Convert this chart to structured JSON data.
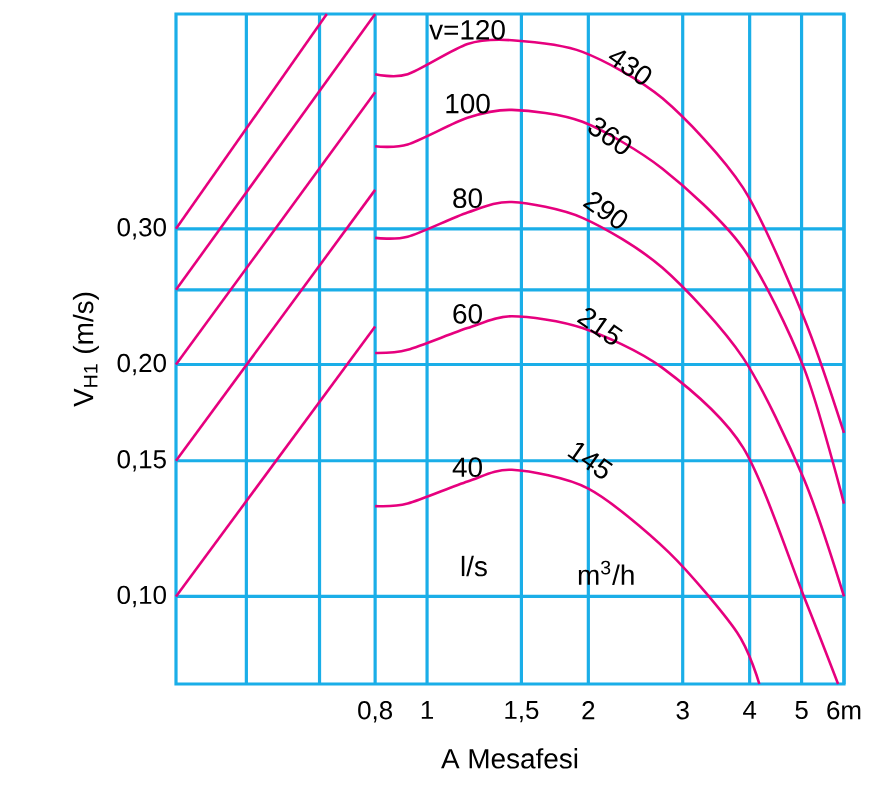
{
  "chart_data": {
    "type": "line",
    "xlabel": "A Mesafesi",
    "ylabel": "V$_{H1}$ (m/s)",
    "log": "xy",
    "grid": true,
    "marker": "none",
    "line_style": "solid",
    "xlim": [
      0.34,
      6
    ],
    "ylim": [
      0.077,
      0.57
    ],
    "xticks": [
      {
        "value": 0.46,
        "label": null
      },
      {
        "value": 0.63,
        "label": null
      },
      {
        "value": 0.8,
        "label": "0,8"
      },
      {
        "value": 1,
        "label": "1"
      },
      {
        "value": 1.5,
        "label": "1,5"
      },
      {
        "value": 2,
        "label": "2"
      },
      {
        "value": 3,
        "label": "3"
      },
      {
        "value": 4,
        "label": "4"
      },
      {
        "value": 5,
        "label": "5"
      },
      {
        "value": 6,
        "label": "6m"
      }
    ],
    "yticks": [
      {
        "value": 0.1,
        "label": "0,10"
      },
      {
        "value": 0.15,
        "label": "0,15"
      },
      {
        "value": 0.2,
        "label": "0,20"
      },
      {
        "value": 0.25,
        "label": null
      },
      {
        "value": 0.3,
        "label": "0,30"
      }
    ],
    "series": [
      {
        "name": "v=120",
        "color": "#e6007e",
        "x": [
          0.8,
          0.92,
          1.19,
          1.44,
          1.95,
          2.75,
          3.89,
          5.05,
          6
        ],
        "values": [
          0.476,
          0.476,
          0.521,
          0.527,
          0.509,
          0.443,
          0.339,
          0.23,
          0.163
        ]
      },
      {
        "name": "100",
        "color": "#e6007e",
        "x": [
          0.8,
          0.92,
          1.19,
          1.44,
          1.95,
          2.75,
          3.89,
          5.05,
          6
        ],
        "values": [
          0.384,
          0.386,
          0.418,
          0.428,
          0.413,
          0.359,
          0.283,
          0.198,
          0.132
        ]
      },
      {
        "name": "80",
        "color": "#e6007e",
        "x": [
          0.8,
          0.92,
          1.19,
          1.44,
          1.95,
          2.75,
          3.89,
          5.05,
          6
        ],
        "values": [
          0.292,
          0.293,
          0.315,
          0.325,
          0.31,
          0.267,
          0.204,
          0.142,
          0.1
        ]
      },
      {
        "name": "60",
        "color": "#e6007e",
        "x": [
          0.8,
          0.92,
          1.19,
          1.44,
          1.95,
          2.75,
          3.89,
          5.05,
          5.85
        ],
        "values": [
          0.207,
          0.209,
          0.223,
          0.231,
          0.223,
          0.198,
          0.156,
          0.1,
          0.077
        ]
      },
      {
        "name": "40",
        "color": "#e6007e",
        "x": [
          0.8,
          0.92,
          1.19,
          1.44,
          2.0,
          2.83,
          3.79,
          4.17
        ],
        "values": [
          0.131,
          0.132,
          0.141,
          0.146,
          0.138,
          0.114,
          0.0898,
          0.077
        ]
      },
      {
        "color": "#e6007e",
        "x": [
          0.34,
          0.65
        ],
        "values": [
          0.3,
          0.57
        ]
      },
      {
        "color": "#e6007e",
        "x": [
          0.34,
          0.8
        ],
        "values": [
          0.25,
          0.57
        ]
      },
      {
        "color": "#e6007e",
        "x": [
          0.34,
          0.8
        ],
        "values": [
          0.2,
          0.451
        ]
      },
      {
        "color": "#e6007e",
        "x": [
          0.34,
          0.8
        ],
        "values": [
          0.15,
          0.337
        ]
      },
      {
        "color": "#e6007e",
        "x": [
          0.34,
          0.8
        ],
        "values": [
          0.1,
          0.224
        ]
      }
    ],
    "annotations": [
      "430",
      "360",
      "290",
      "215",
      "145",
      "l/s",
      "m$^{3}$/h"
    ]
  }
}
